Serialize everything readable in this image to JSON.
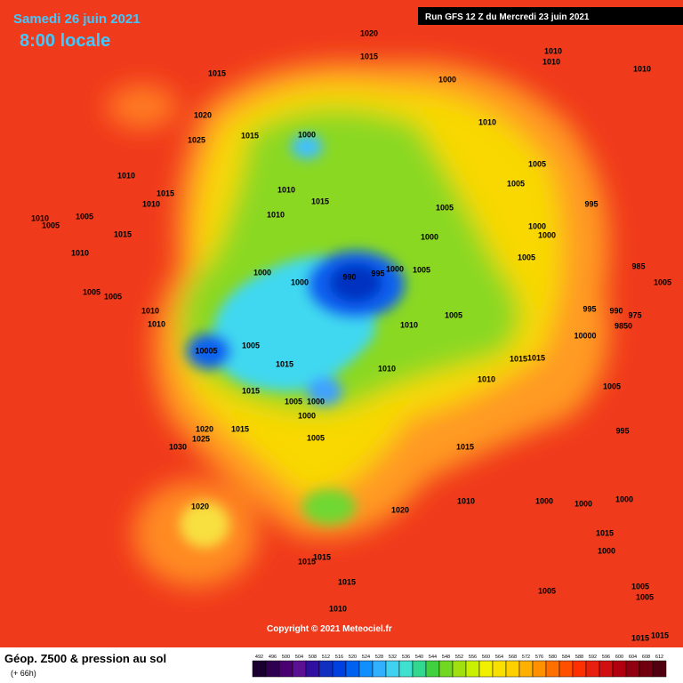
{
  "header": {
    "date": "Samedi 26 juin 2021",
    "time": "8:00 locale",
    "run": "Run GFS 12 Z du Mercredi 23 juin 2021"
  },
  "copyright": "Copyright © 2021 Meteociel.fr",
  "footer": {
    "title": "Géop. Z500 & pression au sol",
    "subtitle": "(+ 66h)"
  },
  "pressure_labels": [
    "1020",
    "1015",
    "1010",
    "1010",
    "1010",
    "1015",
    "1000",
    "1020",
    "1010",
    "1025",
    "1015",
    "1000",
    "1010",
    "1015",
    "1010",
    "1005",
    "1005",
    "995",
    "1010",
    "1015",
    "1010",
    "1005",
    "1005",
    "1010",
    "1005",
    "1000",
    "1000",
    "1015",
    "1000",
    "1010",
    "1005",
    "985",
    "1000",
    "1000",
    "990",
    "995",
    "1000",
    "1005",
    "1005",
    "1005",
    "1005",
    "995",
    "990",
    "975",
    "1010",
    "1005",
    "1010",
    "1010",
    "9850",
    "10000",
    "10005",
    "1005",
    "1015",
    "1015",
    "1015",
    "1010",
    "1010",
    "1015",
    "1005",
    "1005",
    "1000",
    "995",
    "1000",
    "1020",
    "1015",
    "1025",
    "1005",
    "1030",
    "1015",
    "1010",
    "1000",
    "1000",
    "1000",
    "1020",
    "1020",
    "1015",
    "1000",
    "1015",
    "1015",
    "1015",
    "1005",
    "1005",
    "1005",
    "1010",
    "1015",
    "1015"
  ],
  "legend": {
    "values": [
      492,
      496,
      500,
      504,
      508,
      512,
      516,
      520,
      524,
      528,
      532,
      536,
      540,
      544,
      548,
      552,
      556,
      560,
      564,
      568,
      572,
      576,
      580,
      584,
      588,
      592,
      596,
      600,
      604,
      608,
      612
    ],
    "colors": [
      "#1a0030",
      "#300050",
      "#4a0070",
      "#5a1090",
      "#3010a0",
      "#1030c0",
      "#0040e0",
      "#0060f0",
      "#1090ff",
      "#30b0ff",
      "#40d0f0",
      "#40e0d0",
      "#30d890",
      "#40d040",
      "#70d820",
      "#a0e010",
      "#c8f000",
      "#f0f000",
      "#f8e000",
      "#ffd000",
      "#ffb000",
      "#ff9000",
      "#ff7000",
      "#ff5000",
      "#ff3000",
      "#e82010",
      "#d01010",
      "#b00010",
      "#900010",
      "#700010",
      "#500010"
    ]
  }
}
